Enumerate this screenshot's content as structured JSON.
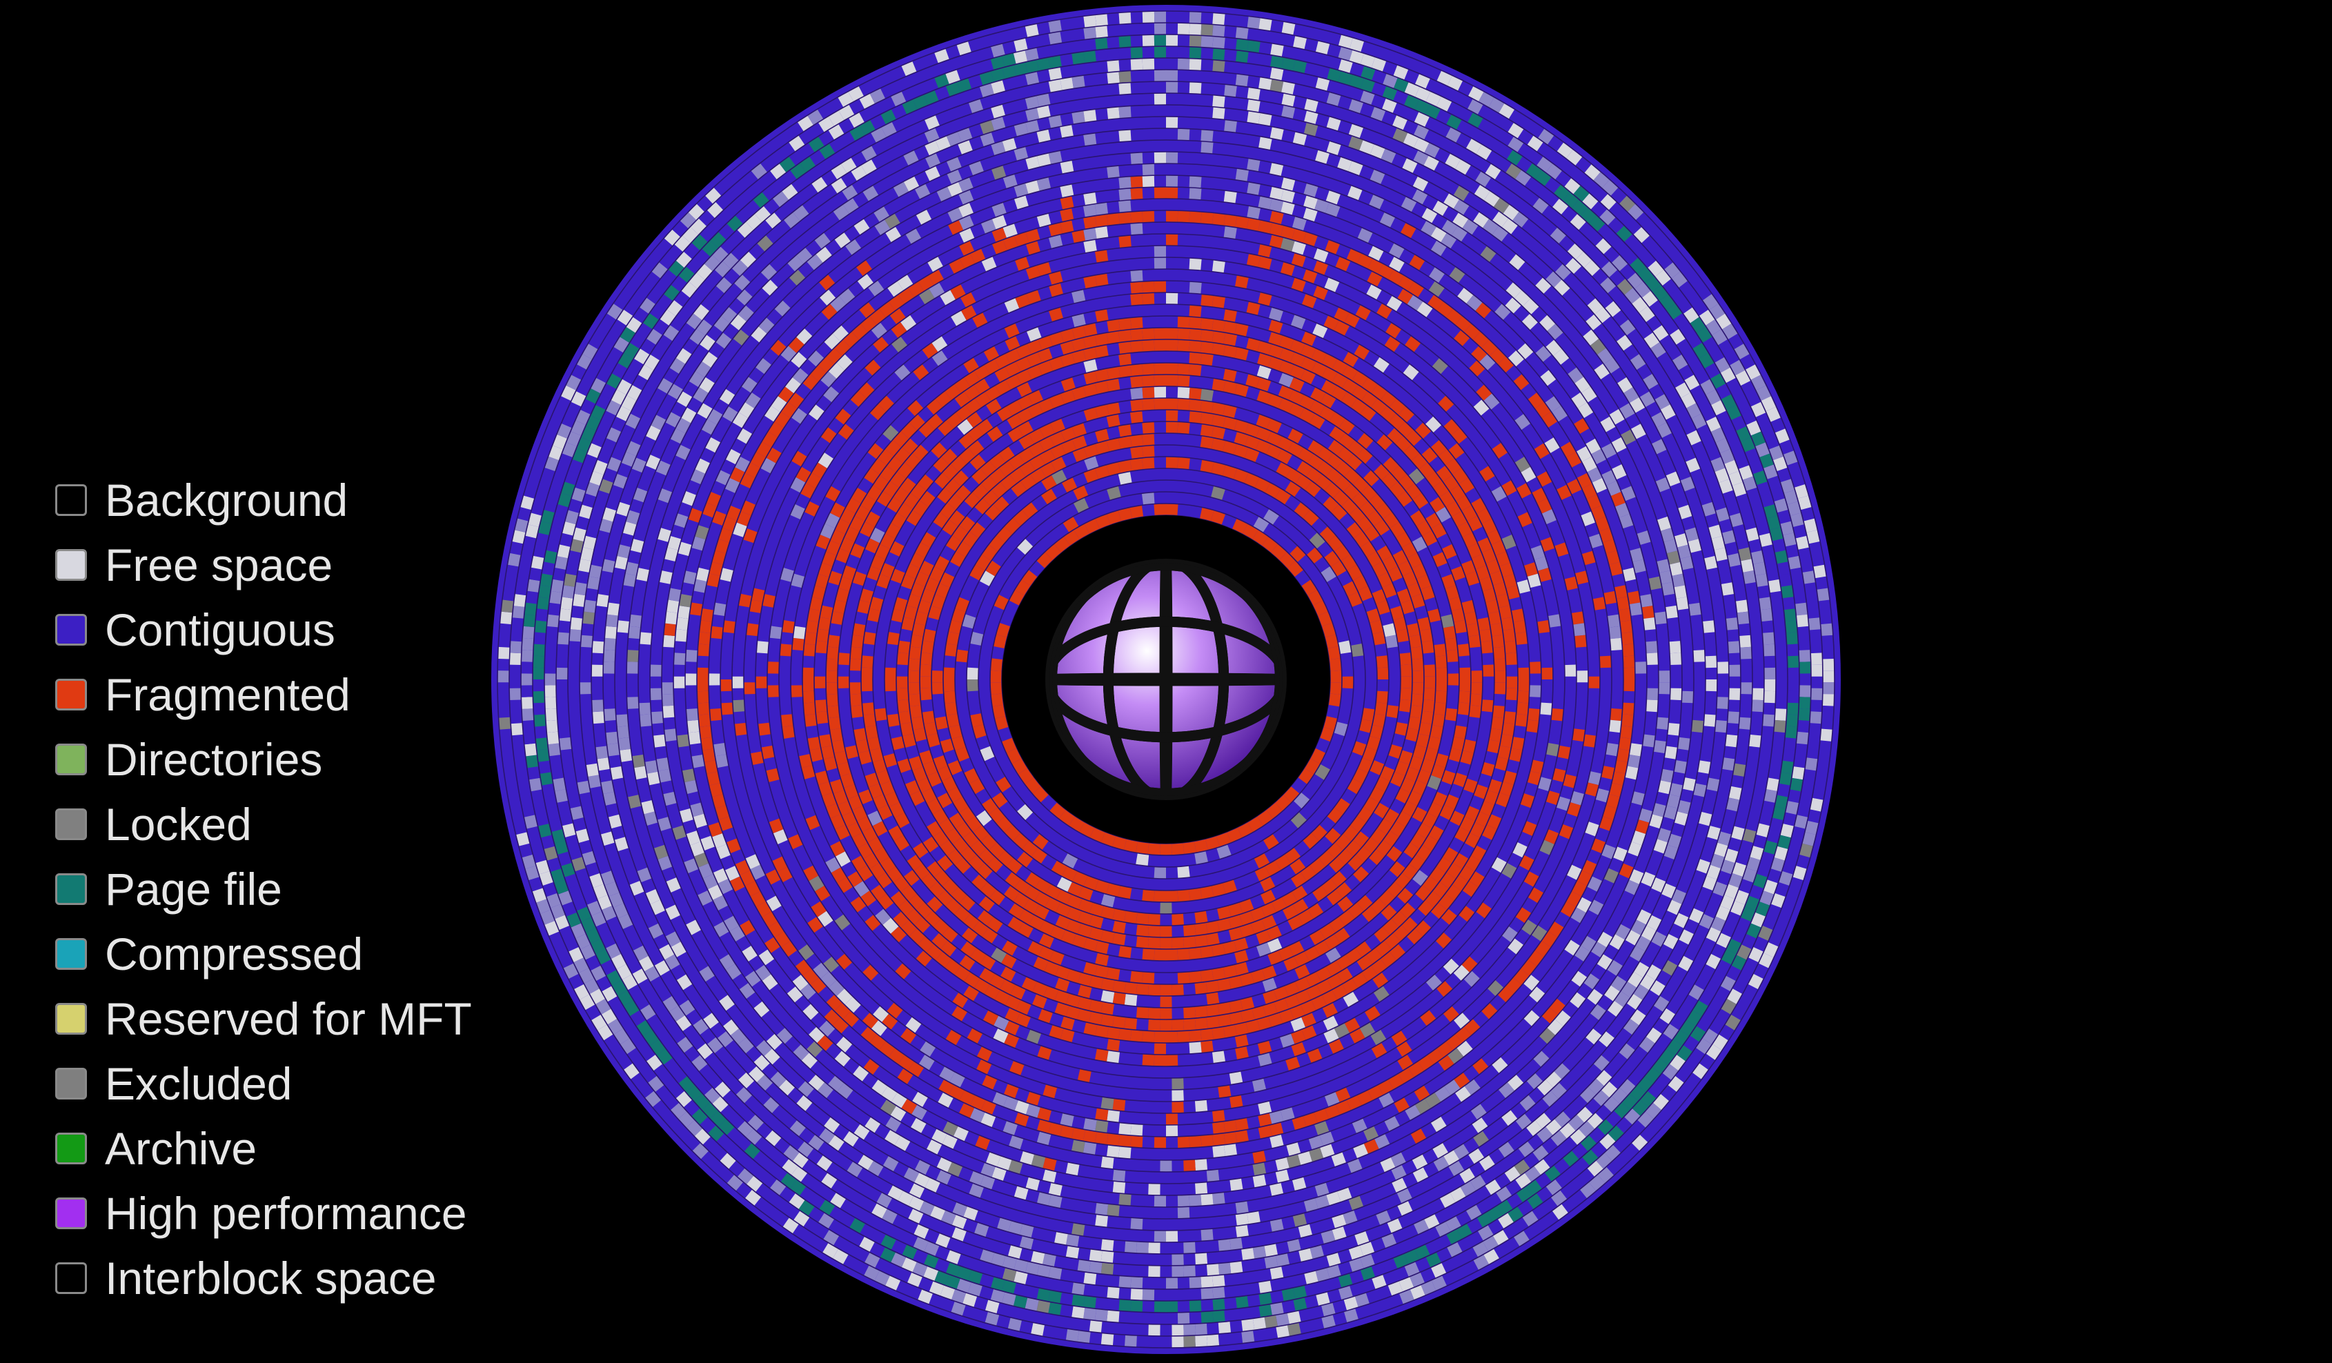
{
  "legend": {
    "items": [
      {
        "key": "background",
        "label": "Background",
        "color": "#000000"
      },
      {
        "key": "free-space",
        "label": "Free space",
        "color": "#d8d8e0"
      },
      {
        "key": "contiguous",
        "label": "Contiguous",
        "color": "#3c1fc4"
      },
      {
        "key": "fragmented",
        "label": "Fragmented",
        "color": "#e03a12"
      },
      {
        "key": "directories",
        "label": "Directories",
        "color": "#7fb35c"
      },
      {
        "key": "locked",
        "label": "Locked",
        "color": "#808080"
      },
      {
        "key": "page-file",
        "label": "Page file",
        "color": "#127a72"
      },
      {
        "key": "compressed",
        "label": "Compressed",
        "color": "#1aa3b8"
      },
      {
        "key": "reserved-for-mft",
        "label": "Reserved for MFT",
        "color": "#d6d16e"
      },
      {
        "key": "excluded",
        "label": "Excluded",
        "color": "#7f7f7f"
      },
      {
        "key": "archive",
        "label": "Archive",
        "color": "#139a15"
      },
      {
        "key": "high-performance",
        "label": "High performance",
        "color": "#a22ff0"
      },
      {
        "key": "interblock-space",
        "label": "Interblock space",
        "color": "#000000"
      }
    ]
  },
  "disk_map": {
    "colors": {
      "grid": "#2a1470",
      "contiguous": "#3c1fc4",
      "fragmented": "#e03a12",
      "free": "#d8d8e0",
      "free_dim": "#8c86c8",
      "locked": "#808080",
      "page_file": "#127a72",
      "hub_ring": "#000000",
      "sphere_light": "#ffffff",
      "sphere_mid": "#c48cf5",
      "sphere_dark": "#4b139b",
      "sphere_grid": "#111111"
    }
  }
}
